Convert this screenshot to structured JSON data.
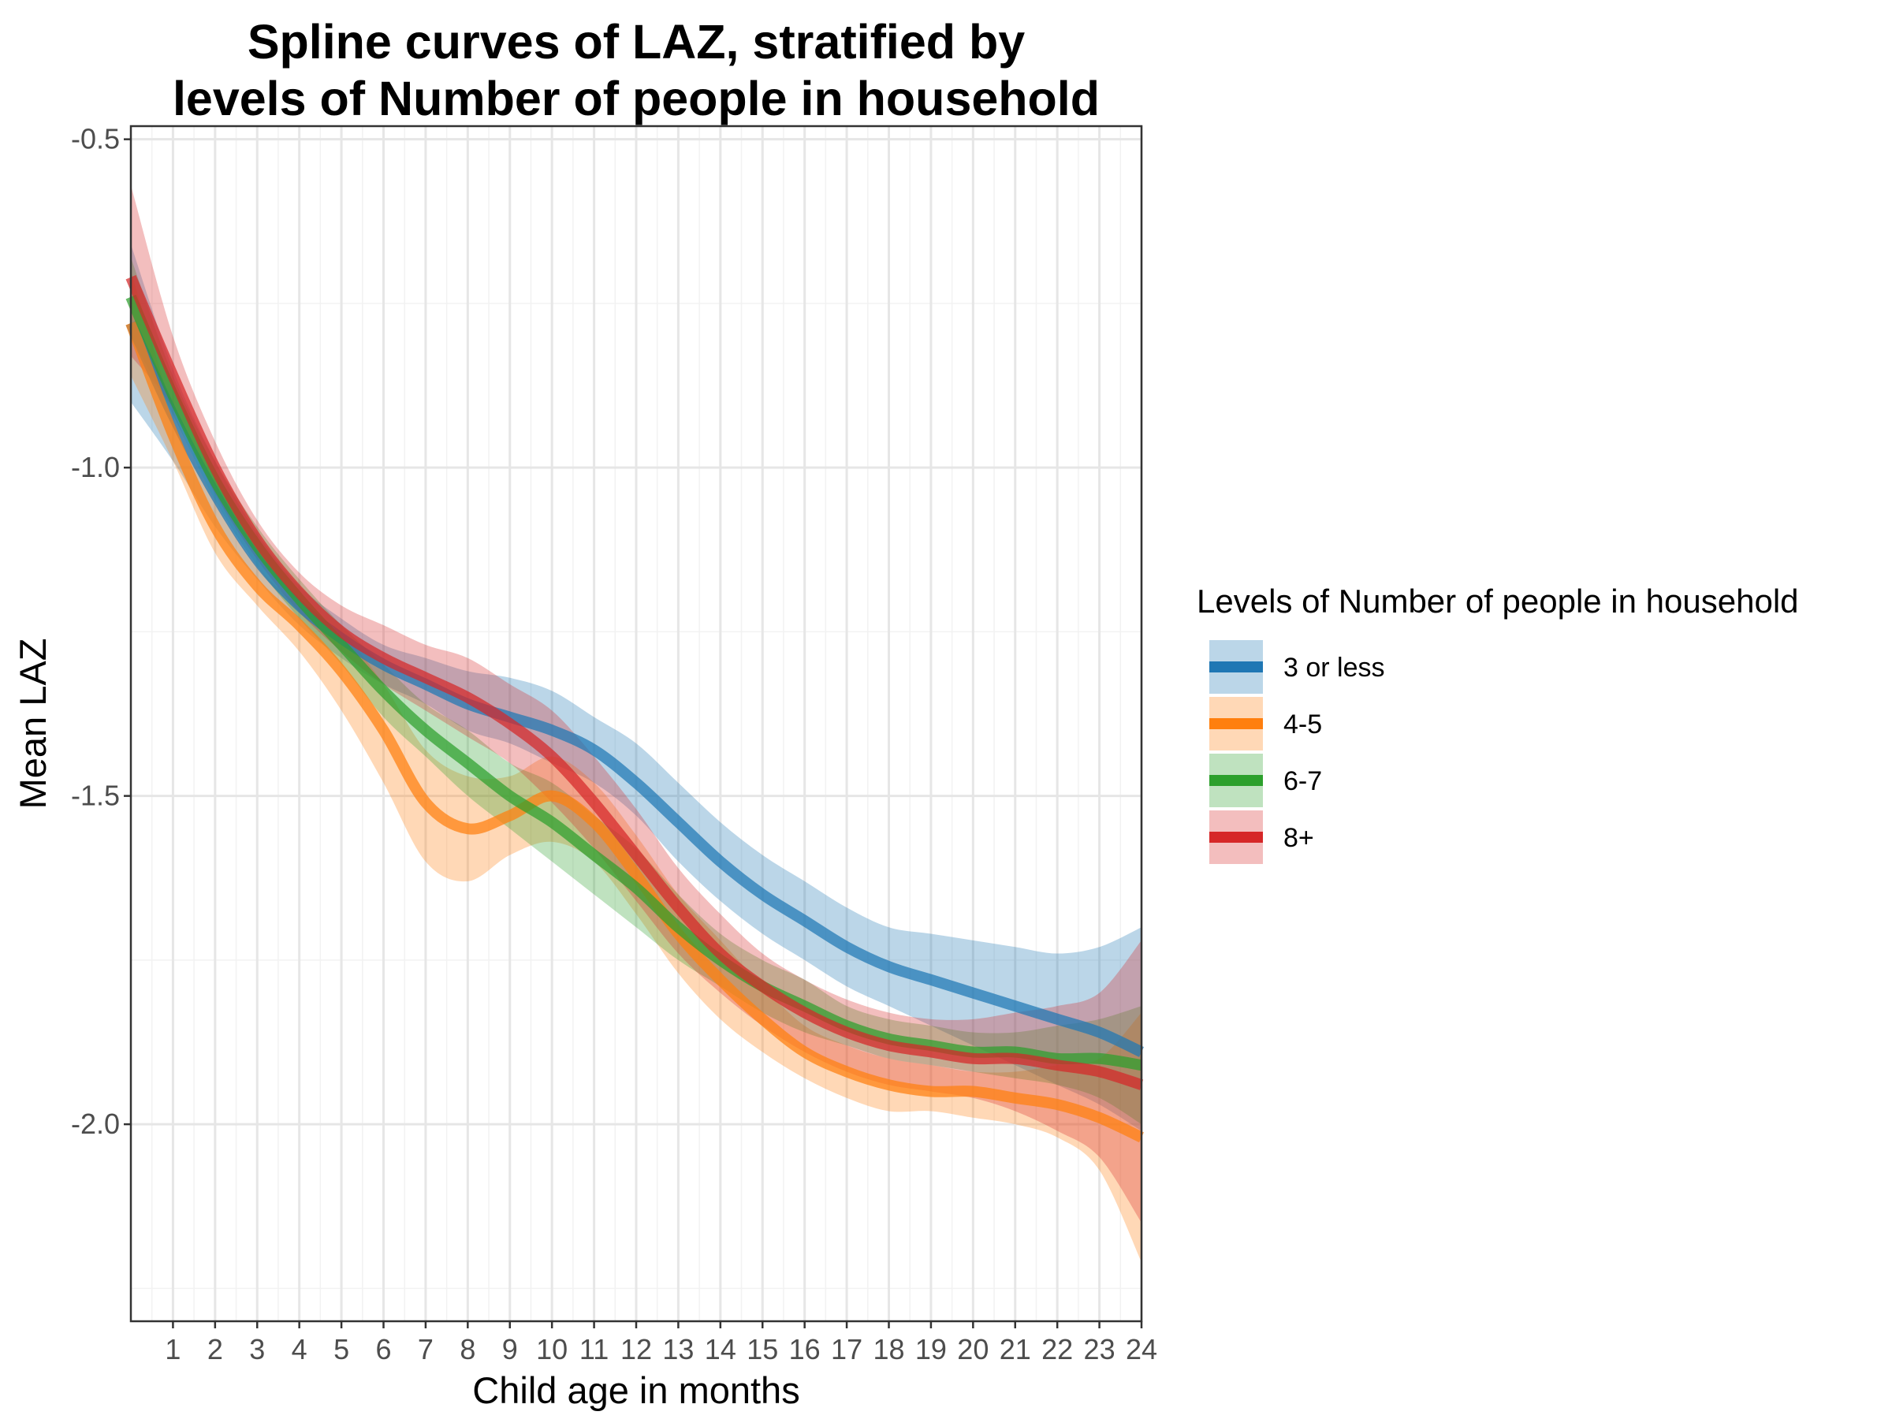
{
  "chart_data": {
    "type": "line",
    "title_line1": "Spline curves of LAZ, stratified by",
    "title_line2": "levels of Number of people in household",
    "xlabel": "Child age in months",
    "ylabel": "Mean LAZ",
    "xlim": [
      0,
      24
    ],
    "ylim": [
      -2.3,
      -0.48
    ],
    "x_ticks": [
      1,
      2,
      3,
      4,
      5,
      6,
      7,
      8,
      9,
      10,
      11,
      12,
      13,
      14,
      15,
      16,
      17,
      18,
      19,
      20,
      21,
      22,
      23,
      24
    ],
    "x_tick_labels": [
      "1",
      "2",
      "3",
      "4",
      "5",
      "6",
      "7",
      "8",
      "9",
      "10",
      "11",
      "12",
      "13",
      "14",
      "15",
      "16",
      "17",
      "18",
      "19",
      "20",
      "21",
      "22",
      "23",
      "24"
    ],
    "y_ticks": [
      -0.5,
      -1.0,
      -1.5,
      -2.0
    ],
    "y_tick_labels": [
      "-0.5",
      "-1.0",
      "-1.5",
      "-2.0"
    ],
    "y_minor_ticks": [
      -0.75,
      -1.25,
      -1.75,
      -2.25
    ],
    "grid": true,
    "legend_title": "Levels of Number of people in household",
    "legend_position": "right",
    "series": [
      {
        "name": "3 or less",
        "color": "#1f77b4",
        "x": [
          0,
          1,
          2,
          3,
          4,
          5,
          6,
          7,
          8,
          9,
          10,
          11,
          12,
          13,
          14,
          15,
          16,
          17,
          18,
          19,
          20,
          21,
          22,
          23,
          24
        ],
        "y": [
          -0.78,
          -0.92,
          -1.04,
          -1.14,
          -1.21,
          -1.26,
          -1.3,
          -1.33,
          -1.36,
          -1.38,
          -1.4,
          -1.43,
          -1.48,
          -1.54,
          -1.6,
          -1.65,
          -1.69,
          -1.73,
          -1.76,
          -1.78,
          -1.8,
          -1.82,
          -1.84,
          -1.86,
          -1.89
        ],
        "lower": [
          -0.9,
          -0.99,
          -1.09,
          -1.17,
          -1.24,
          -1.29,
          -1.33,
          -1.36,
          -1.4,
          -1.42,
          -1.45,
          -1.48,
          -1.53,
          -1.6,
          -1.66,
          -1.71,
          -1.75,
          -1.79,
          -1.82,
          -1.85,
          -1.88,
          -1.91,
          -1.94,
          -1.97,
          -2.01
        ],
        "upper": [
          -0.66,
          -0.85,
          -0.99,
          -1.1,
          -1.18,
          -1.23,
          -1.27,
          -1.29,
          -1.31,
          -1.32,
          -1.34,
          -1.38,
          -1.42,
          -1.48,
          -1.54,
          -1.59,
          -1.63,
          -1.67,
          -1.7,
          -1.71,
          -1.72,
          -1.73,
          -1.74,
          -1.73,
          -1.7
        ]
      },
      {
        "name": "4-5",
        "color": "#ff7f0e",
        "x": [
          0,
          1,
          2,
          3,
          4,
          5,
          6,
          7,
          8,
          9,
          10,
          11,
          12,
          13,
          14,
          15,
          16,
          17,
          18,
          19,
          20,
          21,
          22,
          23,
          24
        ],
        "y": [
          -0.78,
          -0.95,
          -1.09,
          -1.18,
          -1.24,
          -1.31,
          -1.4,
          -1.51,
          -1.55,
          -1.53,
          -1.5,
          -1.54,
          -1.62,
          -1.71,
          -1.78,
          -1.84,
          -1.89,
          -1.92,
          -1.94,
          -1.95,
          -1.95,
          -1.96,
          -1.97,
          -1.99,
          -2.02
        ],
        "lower": [
          -0.86,
          -0.99,
          -1.13,
          -1.21,
          -1.28,
          -1.37,
          -1.48,
          -1.6,
          -1.63,
          -1.59,
          -1.57,
          -1.6,
          -1.68,
          -1.77,
          -1.84,
          -1.89,
          -1.93,
          -1.96,
          -1.98,
          -1.98,
          -1.99,
          -2.0,
          -2.02,
          -2.07,
          -2.21
        ],
        "upper": [
          -0.7,
          -0.91,
          -1.05,
          -1.15,
          -1.21,
          -1.25,
          -1.33,
          -1.43,
          -1.47,
          -1.47,
          -1.44,
          -1.48,
          -1.56,
          -1.65,
          -1.72,
          -1.79,
          -1.85,
          -1.88,
          -1.9,
          -1.91,
          -1.92,
          -1.92,
          -1.91,
          -1.9,
          -1.83
        ]
      },
      {
        "name": "6-7",
        "color": "#2ca02c",
        "x": [
          0,
          1,
          2,
          3,
          4,
          5,
          6,
          7,
          8,
          9,
          10,
          11,
          12,
          13,
          14,
          15,
          16,
          17,
          18,
          19,
          20,
          21,
          22,
          23,
          24
        ],
        "y": [
          -0.74,
          -0.89,
          -1.02,
          -1.12,
          -1.2,
          -1.27,
          -1.34,
          -1.4,
          -1.45,
          -1.5,
          -1.54,
          -1.59,
          -1.64,
          -1.7,
          -1.75,
          -1.79,
          -1.82,
          -1.85,
          -1.87,
          -1.88,
          -1.89,
          -1.89,
          -1.9,
          -1.9,
          -1.91
        ],
        "lower": [
          -0.8,
          -0.92,
          -1.05,
          -1.15,
          -1.23,
          -1.3,
          -1.38,
          -1.44,
          -1.5,
          -1.55,
          -1.6,
          -1.65,
          -1.7,
          -1.75,
          -1.79,
          -1.83,
          -1.86,
          -1.88,
          -1.9,
          -1.91,
          -1.92,
          -1.93,
          -1.94,
          -1.96,
          -2.0
        ],
        "upper": [
          -0.68,
          -0.86,
          -0.99,
          -1.09,
          -1.17,
          -1.24,
          -1.3,
          -1.36,
          -1.4,
          -1.45,
          -1.48,
          -1.53,
          -1.58,
          -1.65,
          -1.71,
          -1.75,
          -1.78,
          -1.82,
          -1.84,
          -1.85,
          -1.86,
          -1.86,
          -1.85,
          -1.84,
          -1.82
        ]
      },
      {
        "name": "8+",
        "color": "#d62728",
        "x": [
          0,
          1,
          2,
          3,
          4,
          5,
          6,
          7,
          8,
          9,
          10,
          11,
          12,
          13,
          14,
          15,
          16,
          17,
          18,
          19,
          20,
          21,
          22,
          23,
          24
        ],
        "y": [
          -0.71,
          -0.86,
          -1.0,
          -1.11,
          -1.19,
          -1.25,
          -1.29,
          -1.32,
          -1.35,
          -1.39,
          -1.44,
          -1.51,
          -1.59,
          -1.67,
          -1.74,
          -1.79,
          -1.83,
          -1.86,
          -1.88,
          -1.89,
          -1.9,
          -1.9,
          -1.91,
          -1.92,
          -1.94
        ],
        "lower": [
          -0.83,
          -0.91,
          -1.04,
          -1.14,
          -1.22,
          -1.28,
          -1.33,
          -1.37,
          -1.41,
          -1.45,
          -1.51,
          -1.58,
          -1.66,
          -1.74,
          -1.8,
          -1.85,
          -1.89,
          -1.92,
          -1.94,
          -1.95,
          -1.96,
          -1.98,
          -2.01,
          -2.05,
          -2.15
        ],
        "upper": [
          -0.57,
          -0.8,
          -0.96,
          -1.08,
          -1.16,
          -1.21,
          -1.24,
          -1.27,
          -1.29,
          -1.33,
          -1.37,
          -1.44,
          -1.52,
          -1.61,
          -1.68,
          -1.74,
          -1.78,
          -1.81,
          -1.83,
          -1.84,
          -1.84,
          -1.83,
          -1.82,
          -1.8,
          -1.72
        ]
      }
    ]
  }
}
